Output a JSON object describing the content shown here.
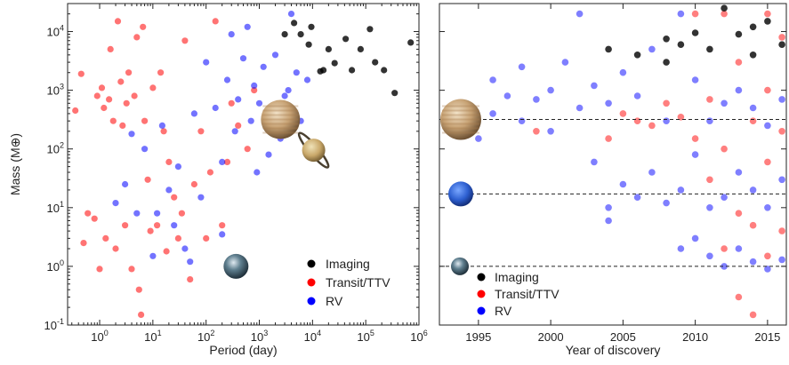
{
  "chart_data": [
    {
      "type": "scatter",
      "xlabel": "Period (day)",
      "ylabel": "Mass (M⊕)",
      "x_scale": "log",
      "y_scale": "log",
      "xlim": [
        0.25,
        1000000
      ],
      "ylim": [
        0.1,
        30000
      ],
      "x_ticks": [
        {
          "value": 1,
          "label": "10^0"
        },
        {
          "value": 10,
          "label": "10^1"
        },
        {
          "value": 100,
          "label": "10^2"
        },
        {
          "value": 1000,
          "label": "10^3"
        },
        {
          "value": 10000,
          "label": "10^4"
        },
        {
          "value": 100000,
          "label": "10^5"
        },
        {
          "value": 1000000,
          "label": "10^6"
        }
      ],
      "y_ticks": [
        {
          "value": 0.1,
          "label": "10^-1"
        },
        {
          "value": 1,
          "label": "10^0"
        },
        {
          "value": 10,
          "label": "10^1"
        },
        {
          "value": 100,
          "label": "10^2"
        },
        {
          "value": 1000,
          "label": "10^3"
        },
        {
          "value": 10000,
          "label": "10^4"
        }
      ],
      "legend": {
        "position": "bottom-right",
        "entries": [
          "Imaging",
          "Transit/TTV",
          "RV"
        ]
      },
      "series": [
        {
          "name": "Imaging",
          "color": "#000000",
          "points": [
            [
              4500,
              14000
            ],
            [
              6000,
              9000
            ],
            [
              8500,
              6000
            ],
            [
              14000,
              2100
            ],
            [
              20000,
              5000
            ],
            [
              26000,
              2900
            ],
            [
              42000,
              7500
            ],
            [
              55000,
              2200
            ],
            [
              80000,
              5000
            ],
            [
              120000,
              11000
            ],
            [
              150000,
              3000
            ],
            [
              220000,
              2200
            ],
            [
              350000,
              900
            ],
            [
              700000,
              6500
            ],
            [
              3000,
              9000
            ],
            [
              9500,
              12000
            ],
            [
              16000,
              2200
            ]
          ]
        },
        {
          "name": "Transit/TTV",
          "color": "#ff0000",
          "points": [
            [
              0.35,
              450
            ],
            [
              0.45,
              1900
            ],
            [
              0.5,
              2.5
            ],
            [
              0.6,
              8
            ],
            [
              0.8,
              6.5
            ],
            [
              0.9,
              800
            ],
            [
              1.0,
              0.9
            ],
            [
              1.1,
              1100
            ],
            [
              1.2,
              500
            ],
            [
              1.3,
              3
            ],
            [
              1.5,
              700
            ],
            [
              1.6,
              5000
            ],
            [
              1.8,
              300
            ],
            [
              2.0,
              2
            ],
            [
              2.2,
              15000
            ],
            [
              2.5,
              1400
            ],
            [
              2.7,
              250
            ],
            [
              3.0,
              5
            ],
            [
              3.2,
              600
            ],
            [
              3.5,
              2000
            ],
            [
              4.0,
              0.9
            ],
            [
              4.5,
              800
            ],
            [
              5.0,
              8000
            ],
            [
              5.5,
              0.4
            ],
            [
              6.0,
              0.15
            ],
            [
              6.5,
              12000
            ],
            [
              7.0,
              300
            ],
            [
              8.0,
              30
            ],
            [
              9.0,
              4
            ],
            [
              10,
              1100
            ],
            [
              12,
              5
            ],
            [
              14,
              2000
            ],
            [
              16,
              200
            ],
            [
              18,
              1.8
            ],
            [
              20,
              60
            ],
            [
              25,
              15
            ],
            [
              30,
              3
            ],
            [
              35,
              8
            ],
            [
              40,
              7000
            ],
            [
              50,
              0.6
            ],
            [
              60,
              25
            ],
            [
              80,
              200
            ],
            [
              100,
              3
            ],
            [
              120,
              40
            ],
            [
              150,
              15000
            ],
            [
              200,
              5
            ],
            [
              250,
              60
            ],
            [
              300,
              600
            ],
            [
              400,
              250
            ],
            [
              600,
              100
            ],
            [
              800,
              1000
            ]
          ]
        },
        {
          "name": "RV",
          "color": "#0000ff",
          "points": [
            [
              2.0,
              12
            ],
            [
              3.0,
              25
            ],
            [
              4.0,
              180
            ],
            [
              5.0,
              8
            ],
            [
              7.0,
              100
            ],
            [
              10,
              1.5
            ],
            [
              12,
              8
            ],
            [
              15,
              250
            ],
            [
              20,
              20
            ],
            [
              30,
              50
            ],
            [
              40,
              2
            ],
            [
              60,
              400
            ],
            [
              80,
              15
            ],
            [
              100,
              3000
            ],
            [
              150,
              500
            ],
            [
              200,
              60
            ],
            [
              250,
              1500
            ],
            [
              300,
              9000
            ],
            [
              350,
              200
            ],
            [
              400,
              700
            ],
            [
              500,
              3500
            ],
            [
              600,
              12000
            ],
            [
              700,
              300
            ],
            [
              800,
              1200
            ],
            [
              1000,
              600
            ],
            [
              1200,
              2500
            ],
            [
              1500,
              80
            ],
            [
              2000,
              4000
            ],
            [
              2500,
              150
            ],
            [
              3000,
              800
            ],
            [
              4000,
              20000
            ],
            [
              5000,
              2000
            ],
            [
              6000,
              300
            ],
            [
              8000,
              1500
            ],
            [
              200,
              3.5
            ],
            [
              50,
              1.2
            ],
            [
              25,
              5
            ],
            [
              900,
              40
            ],
            [
              3500,
              1000
            ],
            [
              1800,
              250
            ]
          ]
        }
      ]
    },
    {
      "type": "scatter",
      "xlabel": "Year of discovery",
      "ylabel": "",
      "y_scale": "log",
      "xlim": [
        1992.3,
        2016.3
      ],
      "ylim": [
        0.1,
        30000
      ],
      "x_ticks": [
        1995,
        2000,
        2005,
        2010,
        2015
      ],
      "reference_lines": [
        317.8,
        17.1,
        1.0
      ],
      "legend": {
        "position": "bottom-left",
        "entries": [
          "Imaging",
          "Transit/TTV",
          "RV"
        ]
      },
      "series": [
        {
          "name": "Imaging",
          "color": "#000000",
          "points": [
            [
              2004,
              5000
            ],
            [
              2006,
              4000
            ],
            [
              2008,
              7500
            ],
            [
              2008,
              3000
            ],
            [
              2009,
              6000
            ],
            [
              2010,
              9500
            ],
            [
              2011,
              5000
            ],
            [
              2012,
              25000
            ],
            [
              2013,
              9000
            ],
            [
              2014,
              12000
            ],
            [
              2014,
              4000
            ],
            [
              2015,
              15000
            ],
            [
              2016,
              6000
            ]
          ]
        },
        {
          "name": "Transit/TTV",
          "color": "#ff0000",
          "points": [
            [
              1999,
              200
            ],
            [
              2004,
              150
            ],
            [
              2005,
              400
            ],
            [
              2006,
              300
            ],
            [
              2007,
              250
            ],
            [
              2008,
              600
            ],
            [
              2009,
              350
            ],
            [
              2010,
              20000
            ],
            [
              2010,
              150
            ],
            [
              2011,
              30
            ],
            [
              2011,
              700
            ],
            [
              2012,
              2
            ],
            [
              2012,
              100
            ],
            [
              2012,
              20000
            ],
            [
              2013,
              0.3
            ],
            [
              2013,
              8
            ],
            [
              2013,
              3000
            ],
            [
              2014,
              0.15
            ],
            [
              2014,
              5
            ],
            [
              2014,
              300
            ],
            [
              2015,
              1.5
            ],
            [
              2015,
              60
            ],
            [
              2015,
              1000
            ],
            [
              2015,
              20000
            ],
            [
              2016,
              4
            ],
            [
              2016,
              200
            ],
            [
              2016,
              8000
            ]
          ]
        },
        {
          "name": "RV",
          "color": "#0000ff",
          "points": [
            [
              1995,
              150
            ],
            [
              1996,
              400
            ],
            [
              1996,
              1500
            ],
            [
              1997,
              800
            ],
            [
              1998,
              300
            ],
            [
              1998,
              2500
            ],
            [
              1999,
              700
            ],
            [
              2000,
              1000
            ],
            [
              2000,
              200
            ],
            [
              2001,
              3000
            ],
            [
              2002,
              500
            ],
            [
              2002,
              20000
            ],
            [
              2003,
              60
            ],
            [
              2003,
              1200
            ],
            [
              2004,
              10
            ],
            [
              2004,
              6
            ],
            [
              2004,
              600
            ],
            [
              2005,
              25
            ],
            [
              2005,
              2000
            ],
            [
              2006,
              15
            ],
            [
              2006,
              800
            ],
            [
              2007,
              40
            ],
            [
              2007,
              5000
            ],
            [
              2008,
              12
            ],
            [
              2008,
              300
            ],
            [
              2009,
              2
            ],
            [
              2009,
              20
            ],
            [
              2009,
              20000
            ],
            [
              2010,
              3
            ],
            [
              2010,
              80
            ],
            [
              2010,
              1500
            ],
            [
              2011,
              1.5
            ],
            [
              2011,
              10
            ],
            [
              2011,
              300
            ],
            [
              2012,
              1.0
            ],
            [
              2012,
              15
            ],
            [
              2012,
              600
            ],
            [
              2013,
              2
            ],
            [
              2013,
              40
            ],
            [
              2013,
              1000
            ],
            [
              2014,
              1.2
            ],
            [
              2014,
              20
            ],
            [
              2014,
              500
            ],
            [
              2015,
              0.9
            ],
            [
              2015,
              10
            ],
            [
              2015,
              250
            ],
            [
              2016,
              1.3
            ],
            [
              2016,
              30
            ],
            [
              2016,
              700
            ]
          ]
        }
      ]
    }
  ]
}
